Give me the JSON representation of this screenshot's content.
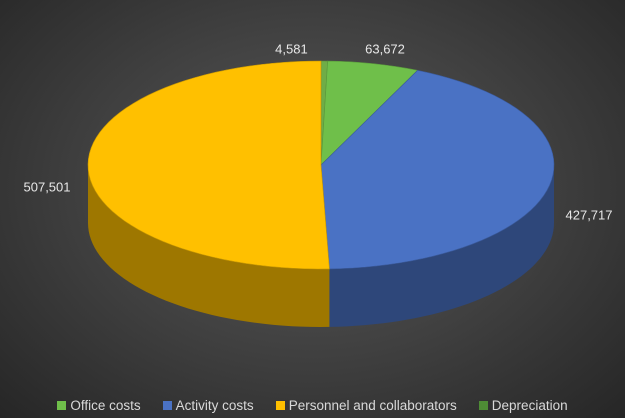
{
  "chart_data": {
    "type": "pie",
    "title": "",
    "slices": [
      {
        "label": "Depreciation",
        "value": 4581,
        "value_label": "4,581",
        "color": "#6fad47"
      },
      {
        "label": "Office costs",
        "value": 63672,
        "value_label": "63,672",
        "color": "#6fbf4a"
      },
      {
        "label": "Activity costs",
        "value": 427717,
        "value_label": "427,717",
        "color": "#4a72c4"
      },
      {
        "label": "Personnel and collaborators",
        "value": 507501,
        "value_label": "507,501",
        "color": "#ffc000"
      }
    ],
    "legend": {
      "placement": "bottom",
      "entries": [
        {
          "label": "Office costs",
          "color": "#6fbf4a"
        },
        {
          "label": "Activity costs",
          "color": "#4a72c4"
        },
        {
          "label": "Personnel and collaborators",
          "color": "#ffc000"
        },
        {
          "label": "Depreciation",
          "color": "#4e8c35"
        }
      ]
    },
    "style": "3d-pie",
    "start": "top, clockwise"
  }
}
